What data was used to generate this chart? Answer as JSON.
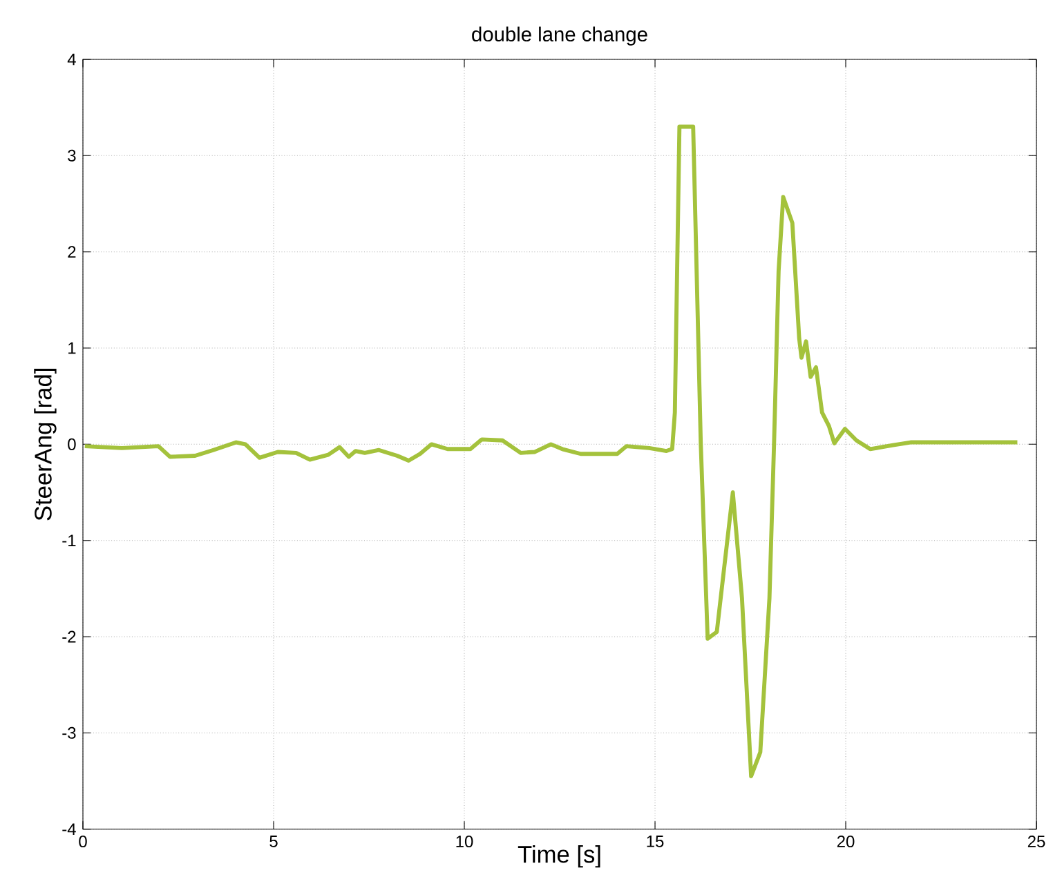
{
  "chart_data": {
    "type": "line",
    "title": "double lane change",
    "xlabel": "Time [s]",
    "ylabel": "SteerAng [rad]",
    "xlim": [
      0,
      25
    ],
    "ylim": [
      -4,
      4
    ],
    "xticks": [
      0,
      5,
      10,
      15,
      20,
      25
    ],
    "yticks": [
      -4,
      -3,
      -2,
      -1,
      0,
      1,
      2,
      3,
      4
    ],
    "grid": true,
    "line_style": "solid",
    "marker": "none",
    "series": [
      {
        "color": "#a4c23c",
        "x": [
          0.05,
          1.02,
          1.98,
          2.28,
          2.94,
          3.42,
          4.02,
          4.26,
          4.63,
          5.11,
          5.59,
          5.95,
          6.43,
          6.73,
          6.97,
          7.15,
          7.39,
          7.76,
          8.24,
          8.54,
          8.84,
          9.14,
          9.56,
          10.16,
          10.46,
          11.0,
          11.48,
          11.85,
          12.27,
          12.57,
          13.05,
          14.01,
          14.25,
          14.85,
          15.3,
          15.45,
          15.52,
          15.64,
          16.0,
          16.2,
          16.38,
          16.62,
          17.04,
          17.28,
          17.52,
          17.76,
          18.0,
          18.12,
          18.24,
          18.36,
          18.6,
          18.78,
          18.84,
          18.96,
          19.08,
          19.22,
          19.38,
          19.56,
          19.7,
          19.98,
          20.28,
          20.64,
          21.24,
          21.7,
          24.5
        ],
        "values": [
          -0.02,
          -0.04,
          -0.02,
          -0.13,
          -0.12,
          -0.06,
          0.02,
          0,
          -0.14,
          -0.08,
          -0.09,
          -0.16,
          -0.11,
          -0.03,
          -0.13,
          -0.07,
          -0.09,
          -0.06,
          -0.12,
          -0.17,
          -0.1,
          0,
          -0.05,
          -0.05,
          0.05,
          0.04,
          -0.09,
          -0.08,
          0,
          -0.05,
          -0.1,
          -0.1,
          -0.02,
          -0.04,
          -0.07,
          -0.05,
          0.33,
          3.3,
          3.3,
          0,
          -2.02,
          -1.95,
          -0.5,
          -1.6,
          -3.45,
          -3.2,
          -1.6,
          0,
          1.8,
          2.57,
          2.3,
          1.1,
          0.9,
          1.07,
          0.7,
          0.8,
          0.33,
          0.19,
          0.01,
          0.16,
          0.04,
          -0.05,
          -0.01,
          0.02,
          0.02
        ]
      }
    ]
  }
}
